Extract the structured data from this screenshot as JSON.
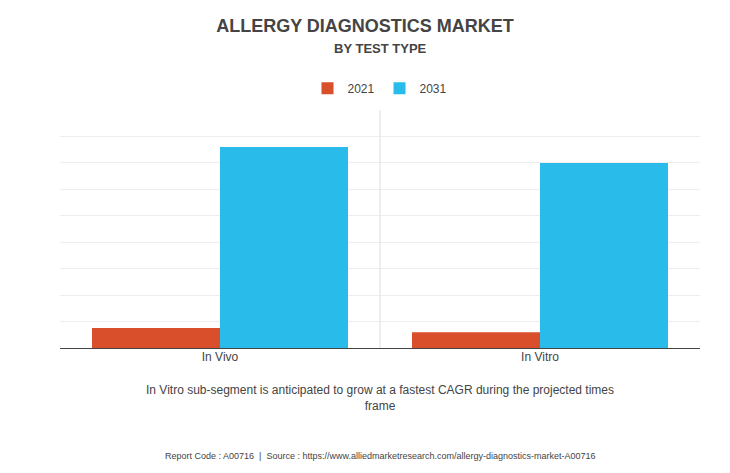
{
  "chart_data": {
    "type": "bar",
    "title": "ALLERGY DIAGNOSTICS MARKET",
    "subtitle": "BY TEST TYPE",
    "categories": [
      "In Vivo",
      "In Vitro"
    ],
    "series": [
      {
        "name": "2021",
        "color": "#D94F2B",
        "values": [
          0.38,
          0.3
        ]
      },
      {
        "name": "2031",
        "color": "#29BCEB",
        "values": [
          3.8,
          3.5
        ]
      }
    ],
    "ylim": [
      0,
      4.5
    ],
    "yticks": [
      0,
      0.5,
      1,
      1.5,
      2,
      2.5,
      3,
      3.5,
      4,
      4.5
    ],
    "grid": true,
    "tick_labels": "x",
    "legend": "top",
    "annotations": [
      "In Vitro sub-segment is anticipated to grow at a fastest CAGR during the projected times\nframe",
      "Report Code : A00716  |  Source : https://www.alliedmarketresearch.com/allergy-diagnostics-market-A00716"
    ]
  }
}
